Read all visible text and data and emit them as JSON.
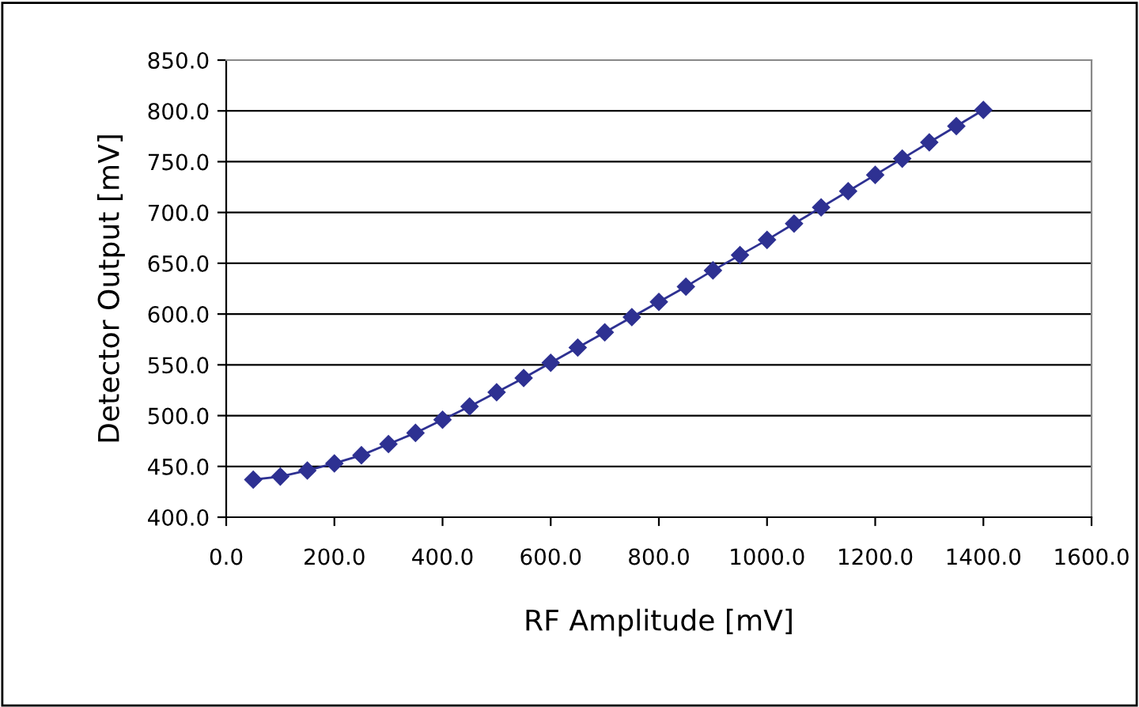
{
  "chart_data": {
    "type": "line",
    "xlabel": "RF Amplitude [mV]",
    "ylabel": "Detector Output [mV]",
    "x": [
      50,
      100,
      150,
      200,
      250,
      300,
      350,
      400,
      450,
      500,
      550,
      600,
      650,
      700,
      750,
      800,
      850,
      900,
      950,
      1000,
      1050,
      1100,
      1150,
      1200,
      1250,
      1300,
      1350,
      1400
    ],
    "series": [
      {
        "color": "#2e3192",
        "values": [
          437,
          440,
          446,
          453,
          461,
          472,
          483,
          496,
          509,
          523,
          537,
          552,
          567,
          582,
          597,
          612,
          627,
          643,
          658,
          673,
          689,
          705,
          721,
          737,
          753,
          769,
          785,
          801
        ]
      }
    ],
    "xlim": [
      0,
      1600
    ],
    "ylim": [
      400,
      850
    ],
    "xticks": [
      {
        "value": 0,
        "label": "0.0"
      },
      {
        "value": 200,
        "label": "200.0"
      },
      {
        "value": 400,
        "label": "400.0"
      },
      {
        "value": 600,
        "label": "600.0"
      },
      {
        "value": 800,
        "label": "800.0"
      },
      {
        "value": 1000,
        "label": "1000.0"
      },
      {
        "value": 1200,
        "label": "1200.0"
      },
      {
        "value": 1400,
        "label": "1400.0"
      },
      {
        "value": 1600,
        "label": "1600.0"
      }
    ],
    "yticks": [
      {
        "value": 400,
        "label": "400.0"
      },
      {
        "value": 450,
        "label": "450.0"
      },
      {
        "value": 500,
        "label": "500.0"
      },
      {
        "value": 550,
        "label": "550.0"
      },
      {
        "value": 600,
        "label": "600.0"
      },
      {
        "value": 650,
        "label": "650.0"
      },
      {
        "value": 700,
        "label": "700.0"
      },
      {
        "value": 750,
        "label": "750.0"
      },
      {
        "value": 800,
        "label": "800.0"
      },
      {
        "value": 850,
        "label": "850.0"
      }
    ],
    "grid": "y",
    "marker": "diamond",
    "line_style": "solid",
    "legend": false
  }
}
